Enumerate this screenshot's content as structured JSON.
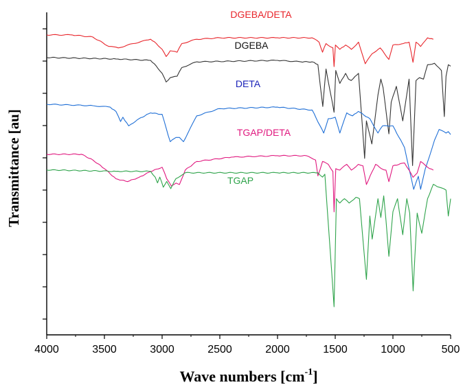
{
  "chart_data": {
    "type": "line",
    "title": "",
    "xlabel": "Wave numbers [cm",
    "xlabel_sup": "-1",
    "xlabel_close": "]",
    "ylabel": "Transmittance [au]",
    "xlim": [
      4000,
      500
    ],
    "x_reversed": true,
    "x_ticks": [
      4000,
      3500,
      3000,
      2500,
      2000,
      1500,
      1000,
      500
    ],
    "y_tick_count": 10,
    "y_tick_labels": false,
    "grid": false,
    "legend": "inline labels",
    "series": [
      {
        "name": "DGEBA/DETA",
        "color": "#e8242a",
        "baseline": 0.93,
        "x_start": 4000,
        "x_end": 650,
        "points": [
          [
            4000,
            0
          ],
          [
            3780,
            0
          ],
          [
            3600,
            -3
          ],
          [
            3460,
            -16
          ],
          [
            3380,
            -18
          ],
          [
            3250,
            -12
          ],
          [
            3100,
            -6
          ],
          [
            3050,
            -12
          ],
          [
            3000,
            -20
          ],
          [
            2965,
            -30
          ],
          [
            2930,
            -22
          ],
          [
            2870,
            -24
          ],
          [
            2830,
            -12
          ],
          [
            2700,
            -6
          ],
          [
            2500,
            -4
          ],
          [
            2000,
            -4
          ],
          [
            1700,
            -4
          ],
          [
            1640,
            -10
          ],
          [
            1610,
            -24
          ],
          [
            1580,
            -12
          ],
          [
            1520,
            -18
          ],
          [
            1510,
            -44
          ],
          [
            1498,
            -14
          ],
          [
            1460,
            -20
          ],
          [
            1410,
            -14
          ],
          [
            1360,
            -20
          ],
          [
            1298,
            -10
          ],
          [
            1240,
            -40
          ],
          [
            1180,
            -26
          ],
          [
            1110,
            -18
          ],
          [
            1035,
            -34
          ],
          [
            1000,
            -14
          ],
          [
            910,
            -12
          ],
          [
            860,
            -10
          ],
          [
            826,
            -38
          ],
          [
            800,
            -10
          ],
          [
            760,
            -16
          ],
          [
            700,
            -4
          ],
          [
            650,
            -6
          ]
        ]
      },
      {
        "name": "DGEBA",
        "color": "#333333",
        "baseline": 0.86,
        "x_start": 4000,
        "x_end": 500,
        "points": [
          [
            4000,
            0
          ],
          [
            3400,
            -2
          ],
          [
            3100,
            -4
          ],
          [
            3050,
            -12
          ],
          [
            3000,
            -22
          ],
          [
            2965,
            -34
          ],
          [
            2930,
            -28
          ],
          [
            2870,
            -26
          ],
          [
            2830,
            -14
          ],
          [
            2700,
            -6
          ],
          [
            2000,
            -4
          ],
          [
            1800,
            -6
          ],
          [
            1700,
            -6
          ],
          [
            1650,
            -10
          ],
          [
            1608,
            -68
          ],
          [
            1580,
            -16
          ],
          [
            1510,
            -76
          ],
          [
            1495,
            -18
          ],
          [
            1460,
            -36
          ],
          [
            1410,
            -22
          ],
          [
            1385,
            -30
          ],
          [
            1362,
            -32
          ],
          [
            1298,
            -22
          ],
          [
            1245,
            -140
          ],
          [
            1230,
            -88
          ],
          [
            1183,
            -120
          ],
          [
            1130,
            -52
          ],
          [
            1105,
            -30
          ],
          [
            1085,
            -42
          ],
          [
            1035,
            -106
          ],
          [
            1015,
            -62
          ],
          [
            970,
            -40
          ],
          [
            915,
            -88
          ],
          [
            860,
            -30
          ],
          [
            830,
            -150
          ],
          [
            800,
            -32
          ],
          [
            770,
            -28
          ],
          [
            735,
            -30
          ],
          [
            700,
            -10
          ],
          [
            640,
            -8
          ],
          [
            580,
            -18
          ],
          [
            555,
            -82
          ],
          [
            540,
            -26
          ],
          [
            520,
            -10
          ],
          [
            500,
            -12
          ]
        ]
      },
      {
        "name": "DETA",
        "color": "#1f6fd6",
        "baseline": 0.715,
        "x_start": 4000,
        "x_end": 500,
        "points": [
          [
            4000,
            0
          ],
          [
            3600,
            -2
          ],
          [
            3450,
            -4
          ],
          [
            3400,
            -10
          ],
          [
            3360,
            -24
          ],
          [
            3340,
            -18
          ],
          [
            3290,
            -30
          ],
          [
            3200,
            -20
          ],
          [
            3100,
            -12
          ],
          [
            3000,
            -14
          ],
          [
            2930,
            -52
          ],
          [
            2880,
            -46
          ],
          [
            2850,
            -46
          ],
          [
            2815,
            -52
          ],
          [
            2700,
            -16
          ],
          [
            2500,
            -6
          ],
          [
            2000,
            -4
          ],
          [
            1700,
            -8
          ],
          [
            1600,
            -40
          ],
          [
            1560,
            -20
          ],
          [
            1500,
            -18
          ],
          [
            1460,
            -40
          ],
          [
            1400,
            -12
          ],
          [
            1350,
            -16
          ],
          [
            1300,
            -10
          ],
          [
            1200,
            -20
          ],
          [
            1130,
            -40
          ],
          [
            1090,
            -30
          ],
          [
            1050,
            -30
          ],
          [
            1000,
            -30
          ],
          [
            900,
            -60
          ],
          [
            820,
            -118
          ],
          [
            780,
            -100
          ],
          [
            760,
            -118
          ],
          [
            720,
            -90
          ],
          [
            640,
            -50
          ],
          [
            600,
            -35
          ],
          [
            540,
            -40
          ],
          [
            520,
            -38
          ],
          [
            500,
            -42
          ]
        ]
      },
      {
        "name": "TGAP/DETA",
        "color": "#e0177e",
        "baseline": 0.56,
        "x_start": 4000,
        "x_end": 650,
        "points": [
          [
            4000,
            0
          ],
          [
            3700,
            0
          ],
          [
            3600,
            -8
          ],
          [
            3500,
            -20
          ],
          [
            3400,
            -34
          ],
          [
            3300,
            -38
          ],
          [
            3200,
            -32
          ],
          [
            3100,
            -24
          ],
          [
            3000,
            -18
          ],
          [
            2960,
            -34
          ],
          [
            2920,
            -44
          ],
          [
            2880,
            -40
          ],
          [
            2850,
            -42
          ],
          [
            2800,
            -22
          ],
          [
            2700,
            -10
          ],
          [
            2400,
            -4
          ],
          [
            2000,
            -2
          ],
          [
            1750,
            -2
          ],
          [
            1670,
            -8
          ],
          [
            1650,
            -30
          ],
          [
            1610,
            -10
          ],
          [
            1560,
            -14
          ],
          [
            1520,
            -24
          ],
          [
            1510,
            -80
          ],
          [
            1495,
            -20
          ],
          [
            1460,
            -22
          ],
          [
            1400,
            -14
          ],
          [
            1360,
            -22
          ],
          [
            1300,
            -14
          ],
          [
            1260,
            -16
          ],
          [
            1230,
            -42
          ],
          [
            1180,
            -24
          ],
          [
            1150,
            -14
          ],
          [
            1100,
            -20
          ],
          [
            1060,
            -22
          ],
          [
            1035,
            -38
          ],
          [
            1000,
            -16
          ],
          [
            900,
            -12
          ],
          [
            860,
            -22
          ],
          [
            826,
            -32
          ],
          [
            790,
            -26
          ],
          [
            760,
            -10
          ],
          [
            700,
            -18
          ],
          [
            650,
            -22
          ]
        ]
      },
      {
        "name": "TGAP",
        "color": "#2ea34a",
        "baseline": 0.5115,
        "x_start": 4000,
        "x_end": 500,
        "points": [
          [
            4000,
            0
          ],
          [
            3400,
            -2
          ],
          [
            3100,
            -2
          ],
          [
            3060,
            -10
          ],
          [
            3040,
            -18
          ],
          [
            3020,
            -10
          ],
          [
            2990,
            -24
          ],
          [
            2960,
            -16
          ],
          [
            2925,
            -26
          ],
          [
            2880,
            -12
          ],
          [
            2800,
            -4
          ],
          [
            2000,
            -4
          ],
          [
            1650,
            -4
          ],
          [
            1610,
            -10
          ],
          [
            1590,
            -6
          ],
          [
            1510,
            -190
          ],
          [
            1490,
            -40
          ],
          [
            1460,
            -46
          ],
          [
            1420,
            -40
          ],
          [
            1380,
            -46
          ],
          [
            1320,
            -38
          ],
          [
            1290,
            -40
          ],
          [
            1230,
            -152
          ],
          [
            1200,
            -64
          ],
          [
            1180,
            -96
          ],
          [
            1130,
            -40
          ],
          [
            1105,
            -66
          ],
          [
            1080,
            -36
          ],
          [
            1060,
            -70
          ],
          [
            1035,
            -120
          ],
          [
            1000,
            -58
          ],
          [
            960,
            -40
          ],
          [
            915,
            -90
          ],
          [
            880,
            -40
          ],
          [
            855,
            -60
          ],
          [
            825,
            -168
          ],
          [
            790,
            -60
          ],
          [
            750,
            -88
          ],
          [
            700,
            -40
          ],
          [
            650,
            -20
          ],
          [
            600,
            -24
          ],
          [
            540,
            -28
          ],
          [
            520,
            -64
          ],
          [
            500,
            -40
          ]
        ]
      }
    ],
    "labels": [
      {
        "text": "DGEBA/DETA",
        "color": "#e8242a"
      },
      {
        "text": "DGEBA",
        "color": "#111111"
      },
      {
        "text": "DETA",
        "color": "#1a22b8"
      },
      {
        "text": "TGAP/DETA",
        "color": "#e0177e"
      },
      {
        "text": "TGAP",
        "color": "#2ea34a"
      }
    ]
  }
}
